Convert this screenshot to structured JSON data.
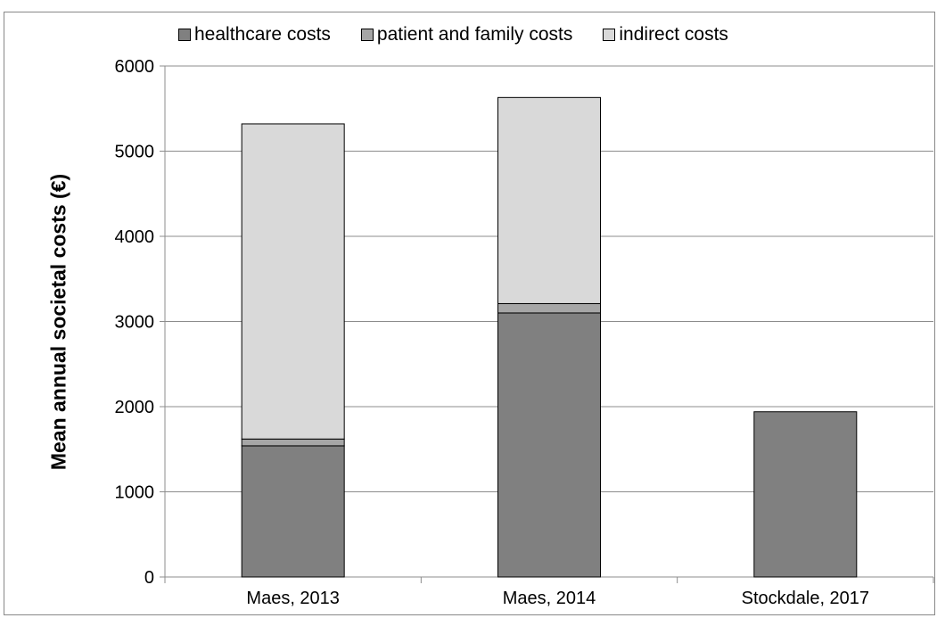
{
  "chart_data": {
    "type": "bar",
    "stacked": true,
    "categories": [
      "Maes, 2013",
      "Maes, 2014",
      "Stockdale, 2017"
    ],
    "series": [
      {
        "name": "healthcare costs",
        "color": "#808080",
        "values": [
          1540,
          3100,
          1940
        ]
      },
      {
        "name": "patient and family costs",
        "color": "#a6a6a6",
        "values": [
          80,
          110,
          0
        ]
      },
      {
        "name": "indirect costs",
        "color": "#d9d9d9",
        "values": [
          3700,
          2420,
          0
        ]
      }
    ],
    "title": "",
    "xlabel": "",
    "ylabel": "Mean annual societal costs (€)",
    "ylim": [
      0,
      6000
    ],
    "yticks": [
      0,
      1000,
      2000,
      3000,
      4000,
      5000,
      6000
    ],
    "grid": true,
    "legend_position": "top"
  }
}
